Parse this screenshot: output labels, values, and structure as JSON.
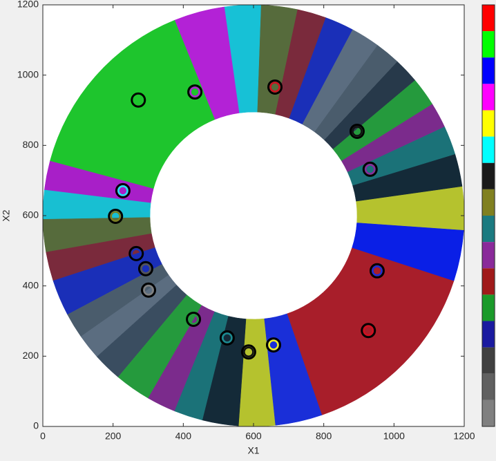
{
  "chart_data": {
    "type": "scatter",
    "xlabel": "X1",
    "ylabel": "X2",
    "xlim": [
      0,
      1200
    ],
    "ylim": [
      0,
      1200
    ],
    "xticks": [
      0,
      200,
      400,
      600,
      800,
      1000,
      1200
    ],
    "yticks": [
      0,
      200,
      400,
      600,
      800,
      1000,
      1200
    ],
    "center": [
      600,
      600
    ],
    "ring_radii": [
      295,
      600
    ],
    "regions": [
      {
        "color": "#b5c22e",
        "theta": [
          -4,
          8
        ]
      },
      {
        "color": "#142a38",
        "theta": [
          8,
          17
        ]
      },
      {
        "color": "#1b7278",
        "theta": [
          17,
          25
        ]
      },
      {
        "color": "#7b2b8c",
        "theta": [
          25,
          32
        ]
      },
      {
        "color": "#259a3d",
        "theta": [
          32,
          40
        ]
      },
      {
        "color": "#27394a",
        "theta": [
          40,
          47
        ]
      },
      {
        "color": "#4a5c6c",
        "theta": [
          47,
          54
        ]
      },
      {
        "color": "#5b6d80",
        "theta": [
          54,
          62
        ]
      },
      {
        "color": "#1a2fb8",
        "theta": [
          62,
          70
        ]
      },
      {
        "color": "#7a2a3c",
        "theta": [
          70,
          78
        ]
      },
      {
        "color": "#566b3c",
        "theta": [
          78,
          88
        ]
      },
      {
        "color": "#17c1d6",
        "theta": [
          88,
          98
        ]
      },
      {
        "color": "#b322d6",
        "theta": [
          98,
          112
        ]
      },
      {
        "color": "#1ec52d",
        "theta": [
          112,
          165
        ]
      },
      {
        "color": "#a81fc8",
        "theta": [
          165,
          173
        ]
      },
      {
        "color": "#18bfd2",
        "theta": [
          173,
          181
        ]
      },
      {
        "color": "#566b3c",
        "theta": [
          181,
          190
        ]
      },
      {
        "color": "#7a2a3c",
        "theta": [
          190,
          198
        ]
      },
      {
        "color": "#1a2fb8",
        "theta": [
          198,
          208
        ]
      },
      {
        "color": "#4a5c6c",
        "theta": [
          208,
          215
        ]
      },
      {
        "color": "#5b6d80",
        "theta": [
          215,
          222
        ]
      },
      {
        "color": "#3a4d60",
        "theta": [
          222,
          230
        ]
      },
      {
        "color": "#259a3d",
        "theta": [
          230,
          240
        ]
      },
      {
        "color": "#7b2b8c",
        "theta": [
          240,
          248
        ]
      },
      {
        "color": "#1b7278",
        "theta": [
          248,
          256
        ]
      },
      {
        "color": "#142a38",
        "theta": [
          256,
          266
        ]
      },
      {
        "color": "#b5c22e",
        "theta": [
          266,
          276
        ]
      },
      {
        "color": "#1a2fd8",
        "theta": [
          276,
          289
        ]
      },
      {
        "color": "#a81e2a",
        "theta": [
          289,
          342
        ]
      },
      {
        "color": "#0a1fe6",
        "theta": [
          342,
          356
        ]
      }
    ],
    "points": {
      "x": [
        272,
        433,
        661,
        895,
        932,
        952,
        927,
        657,
        586,
        525,
        429,
        301,
        293,
        266,
        207,
        228
      ],
      "y": [
        929,
        952,
        966,
        840,
        732,
        443,
        273,
        232,
        212,
        252,
        305,
        388,
        449,
        492,
        598,
        671
      ],
      "colors": [
        "#1ec52d",
        "#b322d6",
        "#d01020",
        "#111111",
        "#8a2a9a",
        "#1a2fd8",
        "#d01020",
        "#f0f020",
        "#111111",
        "#1b8a90",
        "#259a3d",
        "#808080",
        "#555555",
        "#1a2fb8",
        "#7d7d20",
        "#20e8f0"
      ]
    },
    "colorbar": [
      "#ff0000",
      "#00ff00",
      "#0000ff",
      "#ff00ff",
      "#ffff00",
      "#00ffff",
      "#1a1a1a",
      "#808020",
      "#1b7a80",
      "#8a2a9a",
      "#a01a1a",
      "#1a9a2a",
      "#1a1aa0",
      "#404040",
      "#606060",
      "#808080"
    ]
  }
}
